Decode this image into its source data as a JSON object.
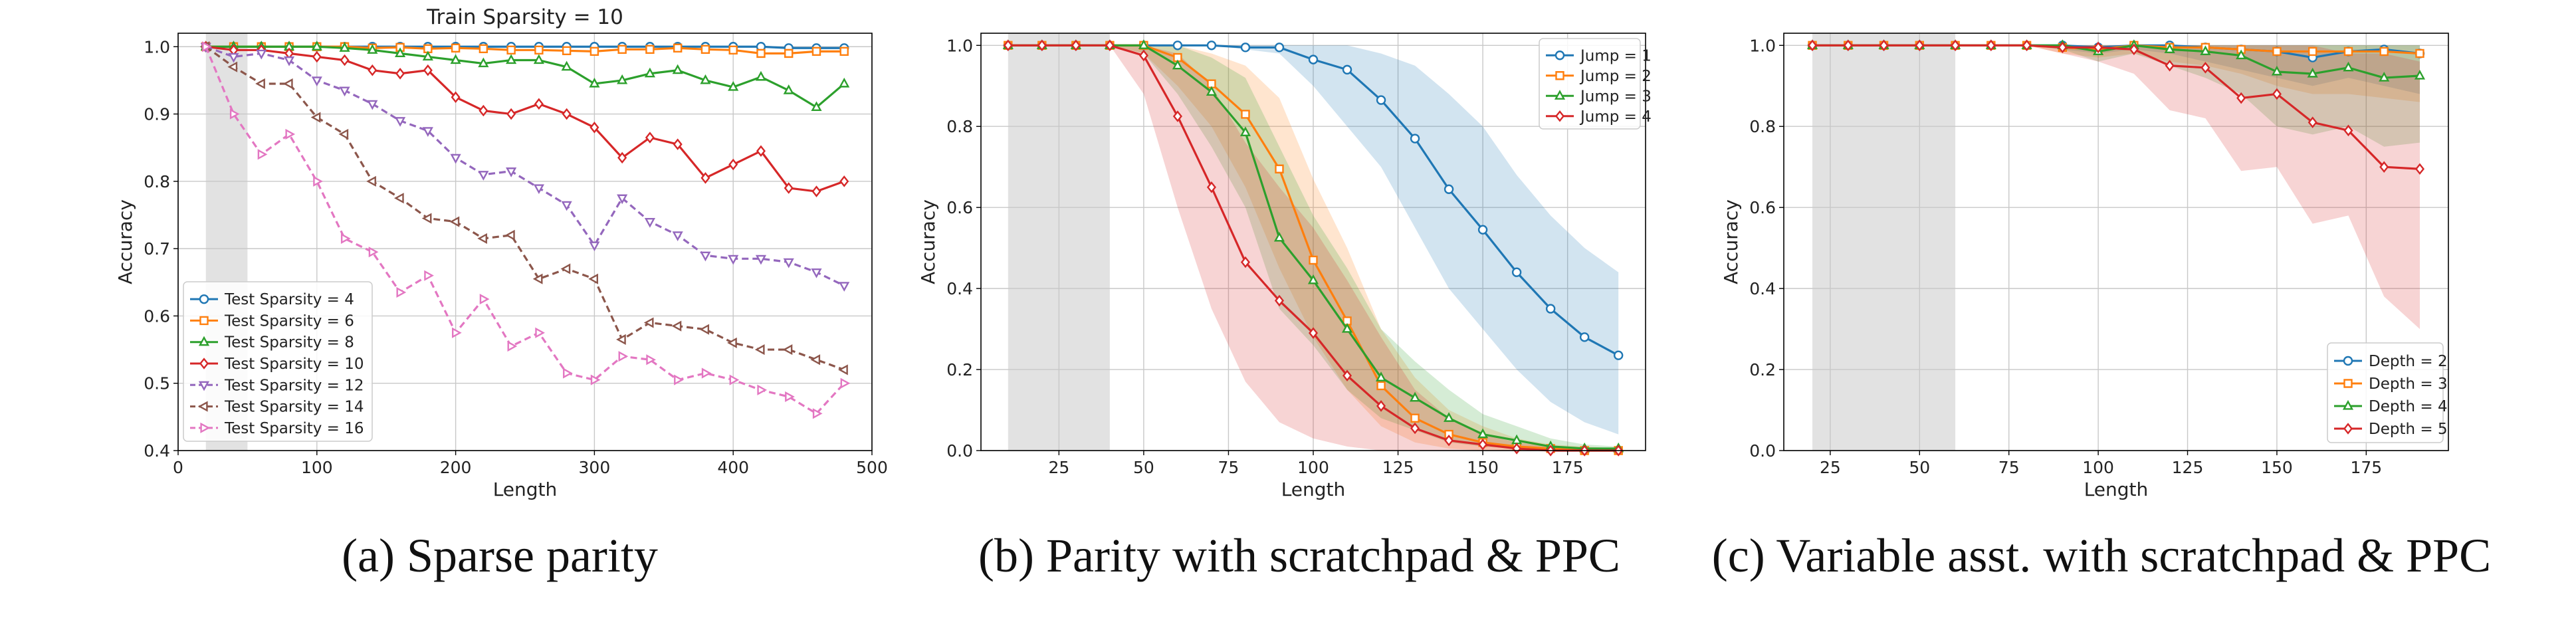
{
  "colors": {
    "blue": "#1f77b4",
    "orange": "#ff7f0e",
    "green": "#2ca02c",
    "red": "#d62728",
    "purple": "#9467bd",
    "brown": "#8c564b",
    "pink": "#e377c2",
    "shade": "#e0e0e0"
  },
  "chart_data": [
    {
      "id": "a",
      "type": "line",
      "title": "Train Sparsity = 10",
      "xlabel": "Length",
      "ylabel": "Accuracy",
      "caption": "(a) Sparse parity",
      "xlim": [
        0,
        500
      ],
      "ylim": [
        0.4,
        1.02
      ],
      "xticks": [
        0,
        100,
        200,
        300,
        400,
        500
      ],
      "yticks": [
        0.4,
        0.5,
        0.6,
        0.7,
        0.8,
        0.9,
        1.0
      ],
      "ytick_labels": [
        "0.4",
        "0.5",
        "0.6",
        "0.7",
        "0.8",
        "0.9",
        "1.0"
      ],
      "grid": true,
      "shaded_region": [
        20,
        50
      ],
      "legend_position": "lower-left",
      "x": [
        20,
        40,
        60,
        80,
        100,
        120,
        140,
        160,
        180,
        200,
        220,
        240,
        260,
        280,
        300,
        320,
        340,
        360,
        380,
        400,
        420,
        440,
        460,
        480
      ],
      "series": [
        {
          "name": "Test Sparsity = 4",
          "color": "blue",
          "marker": "o",
          "values": [
            1.0,
            1.0,
            1.0,
            1.0,
            1.0,
            1.0,
            1.0,
            1.0,
            1.0,
            1.0,
            1.0,
            1.0,
            1.0,
            1.0,
            1.0,
            1.0,
            1.0,
            1.0,
            1.0,
            1.0,
            1.0,
            0.998,
            0.998,
            0.998
          ]
        },
        {
          "name": "Test Sparsity = 6",
          "color": "orange",
          "marker": "s",
          "values": [
            1.0,
            1.0,
            1.0,
            1.0,
            1.0,
            1.0,
            0.998,
            0.999,
            0.997,
            0.998,
            0.997,
            0.995,
            0.995,
            0.994,
            0.993,
            0.996,
            0.996,
            0.998,
            0.996,
            0.995,
            0.99,
            0.99,
            0.993,
            0.993
          ]
        },
        {
          "name": "Test Sparsity = 8",
          "color": "green",
          "marker": "^",
          "values": [
            1.0,
            1.0,
            1.0,
            1.0,
            1.0,
            0.998,
            0.995,
            0.99,
            0.985,
            0.98,
            0.975,
            0.98,
            0.98,
            0.97,
            0.945,
            0.95,
            0.96,
            0.965,
            0.95,
            0.94,
            0.955,
            0.935,
            0.91,
            0.945
          ]
        },
        {
          "name": "Test Sparsity = 10",
          "color": "red",
          "marker": "D",
          "values": [
            1.0,
            0.995,
            0.995,
            0.99,
            0.985,
            0.98,
            0.965,
            0.96,
            0.965,
            0.925,
            0.905,
            0.9,
            0.915,
            0.9,
            0.88,
            0.835,
            0.865,
            0.855,
            0.805,
            0.825,
            0.845,
            0.79,
            0.785,
            0.8
          ]
        },
        {
          "name": "Test Sparsity = 12",
          "color": "purple",
          "marker": "v",
          "values": [
            1.0,
            0.985,
            0.99,
            0.98,
            0.95,
            0.935,
            0.915,
            0.89,
            0.875,
            0.835,
            0.81,
            0.815,
            0.79,
            0.765,
            0.705,
            0.775,
            0.74,
            0.72,
            0.69,
            0.685,
            0.685,
            0.68,
            0.665,
            0.645
          ]
        },
        {
          "name": "Test Sparsity = 14",
          "color": "brown",
          "marker": "<",
          "values": [
            1.0,
            0.97,
            0.945,
            0.945,
            0.895,
            0.87,
            0.8,
            0.775,
            0.745,
            0.74,
            0.715,
            0.72,
            0.655,
            0.67,
            0.655,
            0.565,
            0.59,
            0.585,
            0.58,
            0.56,
            0.55,
            0.55,
            0.535,
            0.52
          ]
        },
        {
          "name": "Test Sparsity = 16",
          "color": "pink",
          "marker": ">",
          "values": [
            1.0,
            0.9,
            0.84,
            0.87,
            0.8,
            0.715,
            0.695,
            0.635,
            0.66,
            0.575,
            0.625,
            0.555,
            0.575,
            0.515,
            0.505,
            0.54,
            0.535,
            0.505,
            0.515,
            0.505,
            0.49,
            0.48,
            0.455,
            0.5
          ]
        }
      ]
    },
    {
      "id": "b",
      "type": "line",
      "title": "",
      "xlabel": "Length",
      "ylabel": "Accuracy",
      "caption": "(b) Parity with scratchpad & PPC",
      "xlim": [
        2,
        198
      ],
      "ylim": [
        0.0,
        1.03
      ],
      "xticks": [
        25,
        50,
        75,
        100,
        125,
        150,
        175
      ],
      "yticks": [
        0.0,
        0.2,
        0.4,
        0.6,
        0.8,
        1.0
      ],
      "ytick_labels": [
        "0.0",
        "0.2",
        "0.4",
        "0.6",
        "0.8",
        "1.0"
      ],
      "grid": true,
      "shaded_region": [
        10,
        40
      ],
      "legend_position": "top-right",
      "x": [
        10,
        20,
        30,
        40,
        50,
        60,
        70,
        80,
        90,
        100,
        110,
        120,
        130,
        140,
        150,
        160,
        170,
        180,
        190
      ],
      "series": [
        {
          "name": "Jump = 1",
          "color": "blue",
          "marker": "o",
          "values": [
            1.0,
            1.0,
            1.0,
            1.0,
            1.0,
            1.0,
            1.0,
            0.995,
            0.995,
            0.965,
            0.94,
            0.865,
            0.77,
            0.645,
            0.545,
            0.44,
            0.35,
            0.28,
            0.235
          ],
          "lower": [
            1.0,
            1.0,
            1.0,
            1.0,
            1.0,
            1.0,
            1.0,
            0.99,
            0.98,
            0.9,
            0.8,
            0.7,
            0.55,
            0.4,
            0.3,
            0.2,
            0.12,
            0.07,
            0.04
          ],
          "upper": [
            1.0,
            1.0,
            1.0,
            1.0,
            1.0,
            1.0,
            1.0,
            1.0,
            1.0,
            1.0,
            1.0,
            0.98,
            0.95,
            0.88,
            0.8,
            0.68,
            0.58,
            0.5,
            0.44
          ]
        },
        {
          "name": "Jump = 2",
          "color": "orange",
          "marker": "s",
          "values": [
            1.0,
            1.0,
            1.0,
            1.0,
            1.0,
            0.97,
            0.905,
            0.83,
            0.695,
            0.47,
            0.32,
            0.16,
            0.08,
            0.04,
            0.02,
            0.01,
            0.005,
            0.0,
            0.0
          ],
          "lower": [
            1.0,
            1.0,
            1.0,
            1.0,
            0.98,
            0.9,
            0.8,
            0.65,
            0.45,
            0.28,
            0.15,
            0.06,
            0.02,
            0.005,
            0.0,
            0.0,
            0.0,
            0.0,
            0.0
          ],
          "upper": [
            1.0,
            1.0,
            1.0,
            1.0,
            1.0,
            1.0,
            0.98,
            0.95,
            0.87,
            0.67,
            0.5,
            0.3,
            0.18,
            0.1,
            0.06,
            0.03,
            0.015,
            0.01,
            0.005
          ]
        },
        {
          "name": "Jump = 3",
          "color": "green",
          "marker": "^",
          "values": [
            1.0,
            1.0,
            1.0,
            1.0,
            1.0,
            0.95,
            0.885,
            0.785,
            0.525,
            0.42,
            0.3,
            0.18,
            0.13,
            0.08,
            0.04,
            0.025,
            0.01,
            0.005,
            0.005
          ],
          "lower": [
            1.0,
            1.0,
            1.0,
            1.0,
            0.98,
            0.88,
            0.75,
            0.6,
            0.35,
            0.26,
            0.15,
            0.08,
            0.05,
            0.02,
            0.01,
            0.005,
            0.0,
            0.0,
            0.0
          ],
          "upper": [
            1.0,
            1.0,
            1.0,
            1.0,
            1.0,
            1.0,
            0.97,
            0.92,
            0.75,
            0.58,
            0.45,
            0.3,
            0.22,
            0.15,
            0.09,
            0.06,
            0.03,
            0.015,
            0.01
          ]
        },
        {
          "name": "Jump = 4",
          "color": "red",
          "marker": "D",
          "values": [
            1.0,
            1.0,
            1.0,
            1.0,
            0.975,
            0.825,
            0.65,
            0.465,
            0.37,
            0.29,
            0.185,
            0.11,
            0.055,
            0.025,
            0.015,
            0.005,
            0.0,
            0.0,
            0.0
          ],
          "lower": [
            1.0,
            1.0,
            1.0,
            1.0,
            0.88,
            0.6,
            0.35,
            0.17,
            0.07,
            0.03,
            0.01,
            0.0,
            0.0,
            0.0,
            0.0,
            0.0,
            0.0,
            0.0,
            0.0
          ],
          "upper": [
            1.0,
            1.0,
            1.0,
            1.0,
            1.0,
            0.98,
            0.9,
            0.76,
            0.65,
            0.55,
            0.42,
            0.28,
            0.15,
            0.08,
            0.04,
            0.02,
            0.01,
            0.005,
            0.0
          ]
        }
      ]
    },
    {
      "id": "c",
      "type": "line",
      "title": "",
      "xlabel": "Length",
      "ylabel": "Accuracy",
      "caption": "(c) Variable asst. with scratchpad & PPC",
      "xlim": [
        12,
        198
      ],
      "ylim": [
        0.0,
        1.03
      ],
      "xticks": [
        25,
        50,
        75,
        100,
        125,
        150,
        175
      ],
      "yticks": [
        0.0,
        0.2,
        0.4,
        0.6,
        0.8,
        1.0
      ],
      "ytick_labels": [
        "0.0",
        "0.2",
        "0.4",
        "0.6",
        "0.8",
        "1.0"
      ],
      "grid": true,
      "shaded_region": [
        20,
        60
      ],
      "legend_position": "lower-right",
      "x": [
        20,
        30,
        40,
        50,
        60,
        70,
        80,
        90,
        100,
        110,
        120,
        130,
        140,
        150,
        160,
        170,
        180,
        190
      ],
      "series": [
        {
          "name": "Depth = 2",
          "color": "blue",
          "marker": "o",
          "values": [
            1.0,
            1.0,
            1.0,
            1.0,
            1.0,
            1.0,
            1.0,
            1.0,
            0.995,
            1.0,
            1.0,
            0.995,
            0.99,
            0.985,
            0.97,
            0.985,
            0.99,
            0.98
          ],
          "lower": [
            1.0,
            1.0,
            1.0,
            1.0,
            1.0,
            1.0,
            1.0,
            0.99,
            0.98,
            0.99,
            0.98,
            0.96,
            0.94,
            0.92,
            0.9,
            0.92,
            0.9,
            0.88
          ],
          "upper": [
            1.0,
            1.0,
            1.0,
            1.0,
            1.0,
            1.0,
            1.0,
            1.0,
            1.0,
            1.0,
            1.0,
            1.0,
            1.0,
            1.0,
            1.0,
            1.0,
            1.0,
            1.0
          ]
        },
        {
          "name": "Depth = 3",
          "color": "orange",
          "marker": "s",
          "values": [
            1.0,
            1.0,
            1.0,
            1.0,
            1.0,
            1.0,
            1.0,
            0.995,
            0.99,
            1.0,
            0.995,
            0.995,
            0.99,
            0.985,
            0.985,
            0.985,
            0.985,
            0.98
          ],
          "lower": [
            1.0,
            1.0,
            1.0,
            1.0,
            1.0,
            1.0,
            1.0,
            0.98,
            0.97,
            0.98,
            0.96,
            0.95,
            0.93,
            0.9,
            0.88,
            0.88,
            0.87,
            0.86
          ],
          "upper": [
            1.0,
            1.0,
            1.0,
            1.0,
            1.0,
            1.0,
            1.0,
            1.0,
            1.0,
            1.0,
            1.0,
            1.0,
            1.0,
            1.0,
            1.0,
            1.0,
            1.0,
            1.0
          ]
        },
        {
          "name": "Depth = 4",
          "color": "green",
          "marker": "^",
          "values": [
            1.0,
            1.0,
            1.0,
            1.0,
            1.0,
            1.0,
            1.0,
            1.0,
            0.985,
            1.0,
            0.99,
            0.985,
            0.975,
            0.935,
            0.93,
            0.945,
            0.92,
            0.925
          ],
          "lower": [
            1.0,
            1.0,
            1.0,
            1.0,
            1.0,
            1.0,
            1.0,
            0.99,
            0.96,
            0.98,
            0.95,
            0.92,
            0.88,
            0.8,
            0.78,
            0.8,
            0.75,
            0.76
          ],
          "upper": [
            1.0,
            1.0,
            1.0,
            1.0,
            1.0,
            1.0,
            1.0,
            1.0,
            1.0,
            1.0,
            1.0,
            1.0,
            1.0,
            1.0,
            1.0,
            1.0,
            1.0,
            1.0
          ]
        },
        {
          "name": "Depth = 5",
          "color": "red",
          "marker": "D",
          "values": [
            1.0,
            1.0,
            1.0,
            1.0,
            1.0,
            1.0,
            1.0,
            0.995,
            0.995,
            0.99,
            0.95,
            0.945,
            0.87,
            0.88,
            0.81,
            0.79,
            0.7,
            0.695
          ],
          "lower": [
            1.0,
            1.0,
            1.0,
            1.0,
            1.0,
            1.0,
            1.0,
            0.98,
            0.96,
            0.93,
            0.84,
            0.82,
            0.69,
            0.7,
            0.56,
            0.58,
            0.38,
            0.3
          ],
          "upper": [
            1.0,
            1.0,
            1.0,
            1.0,
            1.0,
            1.0,
            1.0,
            1.0,
            1.0,
            1.0,
            1.0,
            1.0,
            1.0,
            1.0,
            1.0,
            0.98,
            0.98,
            0.96
          ]
        }
      ]
    }
  ]
}
